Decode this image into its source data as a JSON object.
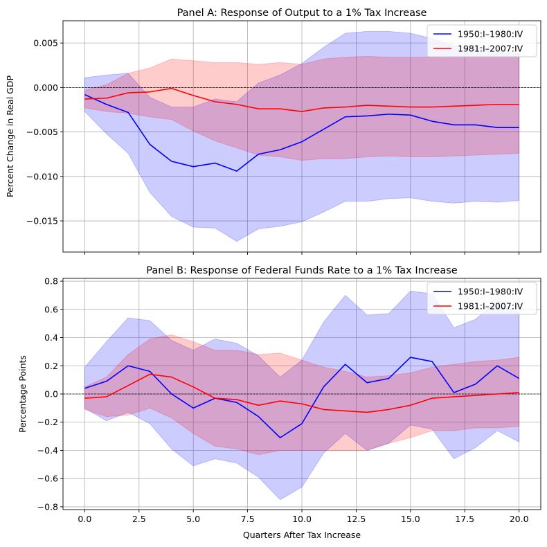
{
  "chart_data": [
    {
      "type": "line",
      "title": "Panel A: Response of Output to a 1% Tax Increase",
      "xlabel": "",
      "ylabel": "Percent Change in Real GDP",
      "xlim": [
        -1,
        21
      ],
      "ylim": [
        -0.0185,
        0.0075
      ],
      "xticks": [
        0,
        2.5,
        5,
        7.5,
        10,
        12.5,
        15,
        17.5,
        20
      ],
      "xtick_labels": [],
      "yticks": [
        -0.015,
        -0.01,
        -0.005,
        0,
        0.005
      ],
      "ytick_labels": [
        "−0.015",
        "−0.010",
        "−0.005",
        "0.000",
        "0.005"
      ],
      "grid": true,
      "zero_line": true,
      "legend_position": "top-right",
      "x": [
        0,
        1,
        2,
        3,
        4,
        5,
        6,
        7,
        8,
        9,
        10,
        11,
        12,
        13,
        14,
        15,
        16,
        17,
        18,
        19,
        20
      ],
      "series": [
        {
          "name": "1950:I–1980:IV",
          "color": "#0000ff",
          "band_color": "#0000ff",
          "values": [
            -0.0008,
            -0.0019,
            -0.0028,
            -0.0064,
            -0.0083,
            -0.0089,
            -0.0085,
            -0.0094,
            -0.0075,
            -0.007,
            -0.0061,
            -0.0047,
            -0.0033,
            -0.0032,
            -0.003,
            -0.0031,
            -0.0038,
            -0.0042,
            -0.0042,
            -0.0045,
            -0.0045
          ],
          "lower": [
            -0.0027,
            -0.0052,
            -0.0074,
            -0.0118,
            -0.0145,
            -0.0157,
            -0.0158,
            -0.0173,
            -0.0159,
            -0.0156,
            -0.0151,
            -0.014,
            -0.0128,
            -0.0128,
            -0.0125,
            -0.0124,
            -0.0128,
            -0.013,
            -0.0128,
            -0.0129,
            -0.0127
          ],
          "upper": [
            0.0011,
            0.0014,
            0.0016,
            -0.0011,
            -0.0022,
            -0.0022,
            -0.0013,
            -0.0016,
            0.0005,
            0.0014,
            0.0027,
            0.0045,
            0.0061,
            0.0063,
            0.0063,
            0.0061,
            0.0055,
            0.0047,
            0.0045,
            0.004,
            0.0038
          ]
        },
        {
          "name": "1981:I–2007:IV",
          "color": "#ff0000",
          "band_color": "#ff0000",
          "values": [
            -0.0013,
            -0.0012,
            -0.0006,
            -0.0005,
            -0.0001,
            -0.0009,
            -0.0016,
            -0.0019,
            -0.0024,
            -0.0024,
            -0.0027,
            -0.0023,
            -0.0022,
            -0.002,
            -0.0021,
            -0.0022,
            -0.0022,
            -0.0021,
            -0.002,
            -0.0019,
            -0.0019
          ],
          "lower": [
            -0.0023,
            -0.0027,
            -0.0029,
            -0.0033,
            -0.0036,
            -0.0049,
            -0.006,
            -0.0068,
            -0.0076,
            -0.0078,
            -0.0082,
            -0.008,
            -0.008,
            -0.0078,
            -0.0077,
            -0.0078,
            -0.0078,
            -0.0077,
            -0.0076,
            -0.0075,
            -0.0074
          ],
          "upper": [
            -0.0003,
            0.0003,
            0.0016,
            0.0022,
            0.0032,
            0.003,
            0.0028,
            0.0028,
            0.0026,
            0.0028,
            0.0026,
            0.0032,
            0.0034,
            0.0035,
            0.0034,
            0.0034,
            0.0034,
            0.0035,
            0.0035,
            0.0035,
            0.0035
          ]
        }
      ]
    },
    {
      "type": "line",
      "title": "Panel B: Response of Federal Funds Rate to a 1% Tax Increase",
      "xlabel": "Quarters After Tax Increase",
      "ylabel": "Percentage Points",
      "xlim": [
        -1,
        21
      ],
      "ylim": [
        -0.82,
        0.82
      ],
      "xticks": [
        0,
        2.5,
        5,
        7.5,
        10,
        12.5,
        15,
        17.5,
        20
      ],
      "xtick_labels": [
        "0.0",
        "2.5",
        "5.0",
        "7.5",
        "10.0",
        "12.5",
        "15.0",
        "17.5",
        "20.0"
      ],
      "yticks": [
        -0.8,
        -0.6,
        -0.4,
        -0.2,
        0,
        0.2,
        0.4,
        0.6,
        0.8
      ],
      "ytick_labels": [
        "−0.8",
        "−0.6",
        "−0.4",
        "−0.2",
        "0.0",
        "0.2",
        "0.4",
        "0.6",
        "0.8"
      ],
      "grid": true,
      "zero_line": true,
      "legend_position": "top-right",
      "x": [
        0,
        1,
        2,
        3,
        4,
        5,
        6,
        7,
        8,
        9,
        10,
        11,
        12,
        13,
        14,
        15,
        16,
        17,
        18,
        19,
        20
      ],
      "series": [
        {
          "name": "1950:I–1980:IV",
          "color": "#0000ff",
          "band_color": "#0000ff",
          "values": [
            0.04,
            0.09,
            0.2,
            0.16,
            0.0,
            -0.1,
            -0.03,
            -0.06,
            -0.16,
            -0.31,
            -0.21,
            0.05,
            0.21,
            0.08,
            0.11,
            0.26,
            0.23,
            0.01,
            0.07,
            0.2,
            0.11
          ],
          "lower": [
            -0.1,
            -0.19,
            -0.13,
            -0.21,
            -0.39,
            -0.51,
            -0.46,
            -0.49,
            -0.59,
            -0.75,
            -0.66,
            -0.42,
            -0.28,
            -0.4,
            -0.35,
            -0.22,
            -0.25,
            -0.46,
            -0.38,
            -0.26,
            -0.34
          ],
          "upper": [
            0.19,
            0.37,
            0.54,
            0.52,
            0.38,
            0.31,
            0.39,
            0.36,
            0.27,
            0.12,
            0.24,
            0.51,
            0.7,
            0.56,
            0.57,
            0.73,
            0.71,
            0.47,
            0.53,
            0.66,
            0.57
          ]
        },
        {
          "name": "1981:I–2007:IV",
          "color": "#ff0000",
          "band_color": "#ff0000",
          "values": [
            -0.03,
            -0.02,
            0.06,
            0.14,
            0.12,
            0.05,
            -0.03,
            -0.04,
            -0.08,
            -0.05,
            -0.07,
            -0.11,
            -0.12,
            -0.13,
            -0.11,
            -0.08,
            -0.03,
            -0.02,
            -0.01,
            0.0,
            0.01
          ],
          "lower": [
            -0.11,
            -0.16,
            -0.15,
            -0.1,
            -0.17,
            -0.28,
            -0.37,
            -0.39,
            -0.43,
            -0.4,
            -0.4,
            -0.4,
            -0.4,
            -0.4,
            -0.35,
            -0.31,
            -0.26,
            -0.26,
            -0.24,
            -0.24,
            -0.23
          ],
          "upper": [
            0.05,
            0.12,
            0.28,
            0.39,
            0.42,
            0.37,
            0.31,
            0.31,
            0.28,
            0.29,
            0.24,
            0.19,
            0.16,
            0.12,
            0.13,
            0.15,
            0.19,
            0.21,
            0.23,
            0.24,
            0.26
          ]
        }
      ]
    }
  ]
}
